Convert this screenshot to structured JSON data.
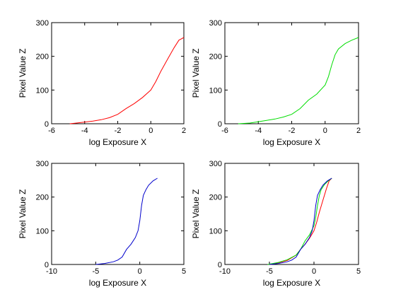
{
  "colors": {
    "red": "#ff0000",
    "green": "#00dd00",
    "blue": "#0000cc",
    "axes": "#000000",
    "background": "#ffffff"
  },
  "chart_data": [
    {
      "type": "line",
      "xlabel": "log Exposure X",
      "ylabel": "Pixel Value Z",
      "xlim": [
        -6,
        2
      ],
      "ylim": [
        0,
        300
      ],
      "xticks": [
        -6,
        -4,
        -2,
        0,
        2
      ],
      "yticks": [
        0,
        100,
        200,
        300
      ],
      "grid": false,
      "series": [
        {
          "color": "#ff0000",
          "x": [
            -4.9,
            -4.5,
            -4.0,
            -3.5,
            -3.0,
            -2.5,
            -2.0,
            -1.5,
            -1.0,
            -0.5,
            0.0,
            0.3,
            0.6,
            1.0,
            1.4,
            1.7,
            2.0
          ],
          "y": [
            0,
            2,
            5,
            8,
            12,
            18,
            28,
            45,
            60,
            78,
            100,
            125,
            155,
            190,
            225,
            248,
            256
          ]
        }
      ]
    },
    {
      "type": "line",
      "xlabel": "log Exposure X",
      "ylabel": "Pixel Value Z",
      "xlim": [
        -6,
        2
      ],
      "ylim": [
        0,
        300
      ],
      "xticks": [
        -6,
        -4,
        -2,
        0,
        2
      ],
      "yticks": [
        0,
        100,
        200,
        300
      ],
      "grid": false,
      "series": [
        {
          "color": "#00dd00",
          "x": [
            -5.2,
            -4.5,
            -4.0,
            -3.5,
            -3.0,
            -2.5,
            -2.0,
            -1.5,
            -1.0,
            -0.5,
            0.0,
            0.2,
            0.4,
            0.6,
            0.8,
            1.2,
            1.6,
            2.0
          ],
          "y": [
            0,
            2,
            6,
            10,
            14,
            20,
            28,
            45,
            70,
            88,
            115,
            140,
            175,
            205,
            222,
            238,
            248,
            256
          ]
        }
      ]
    },
    {
      "type": "line",
      "xlabel": "log Exposure X",
      "ylabel": "Pixel Value Z",
      "xlim": [
        -10,
        5
      ],
      "ylim": [
        0,
        300
      ],
      "xticks": [
        -10,
        -5,
        0,
        5
      ],
      "yticks": [
        0,
        100,
        200,
        300
      ],
      "grid": false,
      "series": [
        {
          "color": "#0000cc",
          "x": [
            -5.0,
            -4.0,
            -3.0,
            -2.5,
            -2.0,
            -1.5,
            -1.0,
            -0.5,
            -0.2,
            0.0,
            0.2,
            0.4,
            0.7,
            1.0,
            1.5,
            2.0
          ],
          "y": [
            0,
            3,
            8,
            13,
            22,
            45,
            60,
            80,
            100,
            130,
            175,
            205,
            222,
            235,
            248,
            256
          ]
        }
      ]
    },
    {
      "type": "line",
      "xlabel": "log Exposure X",
      "ylabel": "Pixel Value Z",
      "xlim": [
        -10,
        5
      ],
      "ylim": [
        0,
        300
      ],
      "xticks": [
        -10,
        -5,
        0,
        5
      ],
      "yticks": [
        0,
        100,
        200,
        300
      ],
      "grid": false,
      "series": [
        {
          "color": "#ff0000",
          "x": [
            -4.9,
            -4.0,
            -3.0,
            -2.0,
            -1.5,
            -1.0,
            -0.5,
            0.0,
            0.3,
            0.6,
            1.0,
            1.4,
            1.7,
            2.0
          ],
          "y": [
            0,
            5,
            12,
            28,
            45,
            60,
            78,
            100,
            125,
            155,
            190,
            225,
            248,
            256
          ]
        },
        {
          "color": "#00dd00",
          "x": [
            -5.2,
            -4.0,
            -3.0,
            -2.0,
            -1.5,
            -1.0,
            -0.5,
            0.0,
            0.2,
            0.4,
            0.6,
            0.8,
            1.2,
            1.6,
            2.0
          ],
          "y": [
            0,
            6,
            14,
            28,
            45,
            70,
            88,
            115,
            140,
            175,
            205,
            222,
            238,
            248,
            256
          ]
        },
        {
          "color": "#0000cc",
          "x": [
            -5.0,
            -4.0,
            -3.0,
            -2.5,
            -2.0,
            -1.5,
            -1.0,
            -0.5,
            -0.2,
            0.0,
            0.2,
            0.4,
            0.7,
            1.0,
            1.5,
            2.0
          ],
          "y": [
            0,
            3,
            8,
            13,
            22,
            45,
            60,
            80,
            100,
            130,
            175,
            205,
            222,
            235,
            248,
            256
          ]
        }
      ]
    }
  ]
}
